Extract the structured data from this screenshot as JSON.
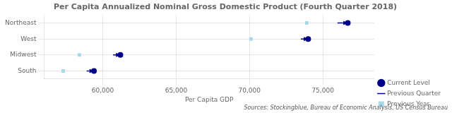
{
  "chart_data": {
    "type": "arrow",
    "title": "Per Capita Annualized Nominal Gross Domestic Product (Fourth Quarter 2018)",
    "x_label": "Per Capita GDP",
    "annotation": "Sources: Stockingblue, Bureau of Economic Analysis, US Census Bureau",
    "categories": [
      "Northeast",
      "West",
      "Midwest",
      "South"
    ],
    "series": [
      {
        "name": "Current Level",
        "color": "#00008B",
        "marker": "circle",
        "values": [
          76700,
          74000,
          61200,
          59400
        ]
      },
      {
        "name": "Previous Quarter",
        "color": "#00008B",
        "line_style": "solid",
        "values": [
          76000,
          73500,
          60700,
          58900
        ]
      },
      {
        "name": "Previous Year",
        "color": "#A8D8E8",
        "marker": "square",
        "values": [
          73900,
          70100,
          58400,
          57300
        ]
      }
    ],
    "xlim": [
      56000,
      78500
    ],
    "xticks": [
      {
        "value": 60000,
        "label": "60,000"
      },
      {
        "value": 65000,
        "label": "65,000"
      },
      {
        "value": 70000,
        "label": "70,000"
      },
      {
        "value": 75000,
        "label": "75,000"
      }
    ],
    "grid": true,
    "legend": "lower right"
  }
}
